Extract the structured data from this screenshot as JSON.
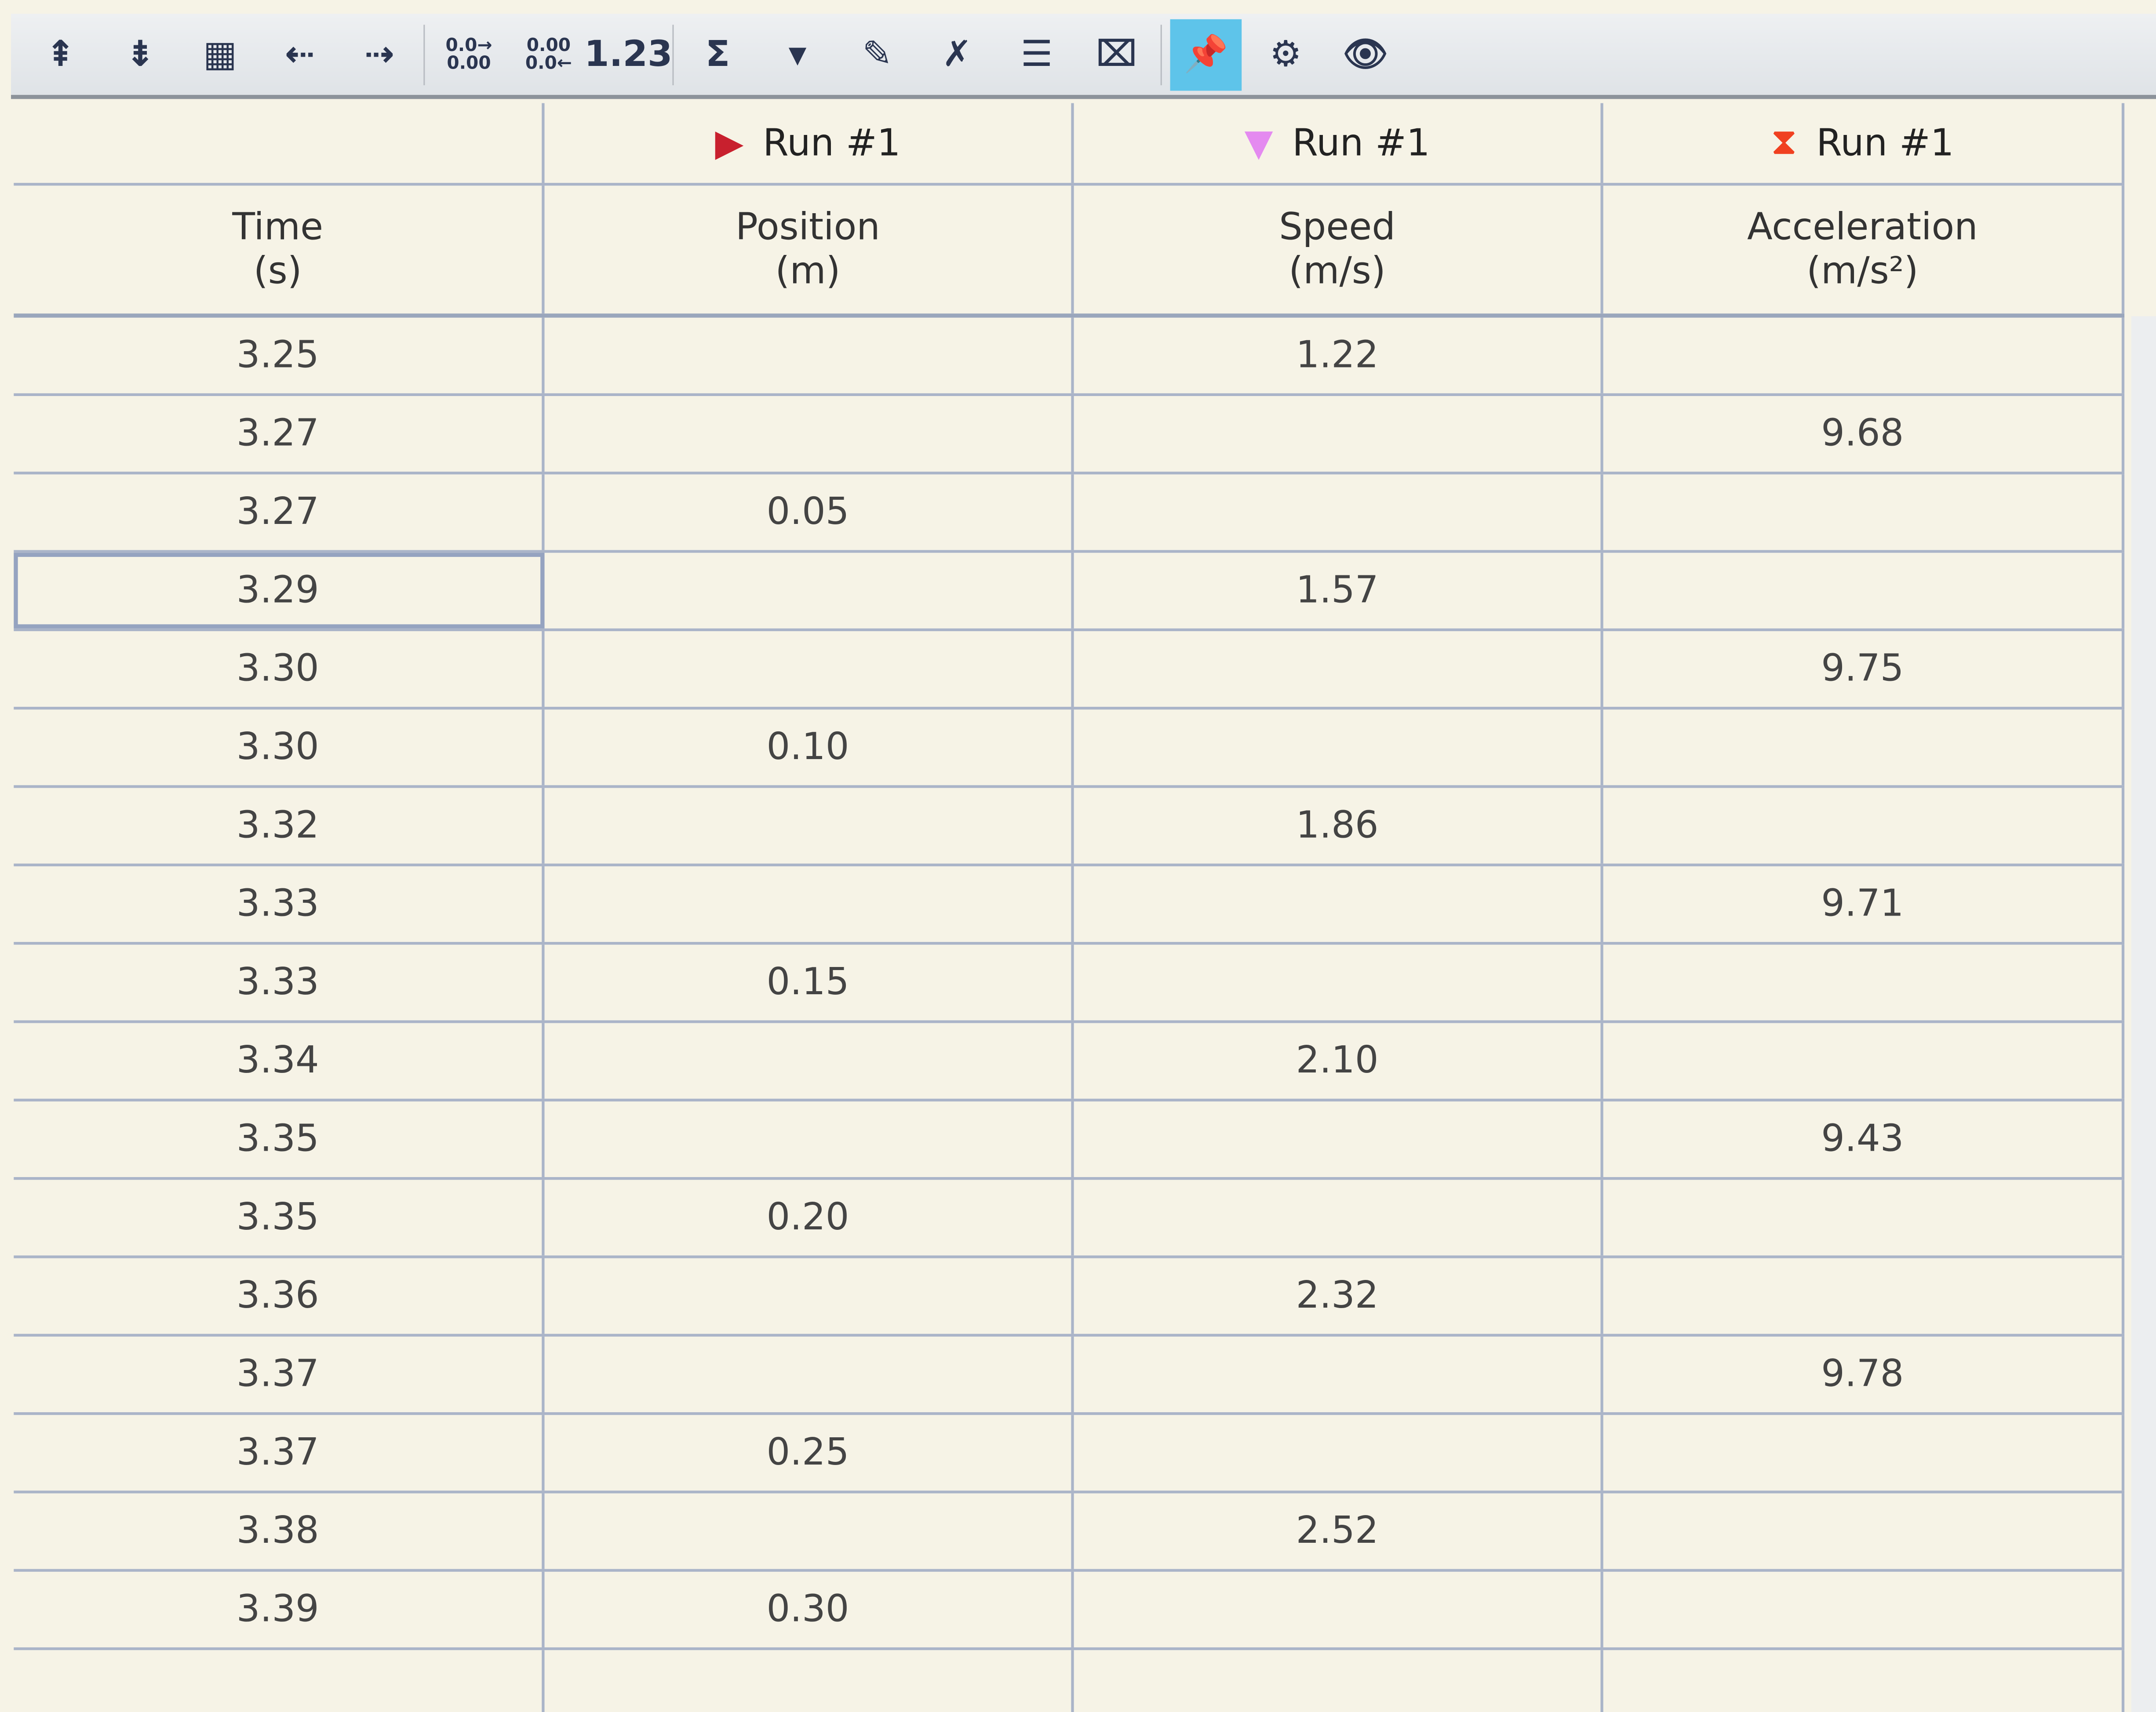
{
  "toolbar": {
    "items": [
      {
        "name": "insert-row-above-icon",
        "glyph": "⇞"
      },
      {
        "name": "insert-row-below-icon",
        "glyph": "⇟"
      },
      {
        "name": "add-column-icon",
        "glyph": "▦"
      },
      {
        "name": "insert-column-left-icon",
        "glyph": "⇠"
      },
      {
        "name": "insert-column-right-icon",
        "glyph": "⇢"
      },
      {
        "name": "increase-decimals-icon",
        "glyph": "0.0→ 0.00"
      },
      {
        "name": "decrease-decimals-icon",
        "glyph": "0.00 0.0←"
      },
      {
        "name": "number-format-icon",
        "glyph": "1.23"
      },
      {
        "name": "sigma-statistics-icon",
        "glyph": "Σ"
      },
      {
        "name": "dropdown-arrow-icon",
        "glyph": "▾"
      },
      {
        "name": "edit-column-icon",
        "glyph": "✎"
      },
      {
        "name": "clear-icon",
        "glyph": "✗"
      },
      {
        "name": "column-properties-icon",
        "glyph": "☰"
      },
      {
        "name": "fit-columns-icon",
        "glyph": "⌧"
      },
      {
        "name": "pin-icon",
        "glyph": "📌",
        "active": true
      },
      {
        "name": "settings-gear-icon",
        "glyph": "⚙"
      },
      {
        "name": "eye-visibility-icon",
        "glyph": "👁"
      }
    ]
  },
  "columns": [
    {
      "run": "",
      "name": "Time",
      "unit": "(s)",
      "marker": "",
      "color": ""
    },
    {
      "run": "Run #1",
      "name": "Position",
      "unit": "(m)",
      "marker": "▶",
      "color": "#c8202e"
    },
    {
      "run": "Run #1",
      "name": "Speed",
      "unit": "(m/s)",
      "marker": "▼",
      "color": "#e48af0"
    },
    {
      "run": "Run #1",
      "name": "Acceleration",
      "unit": "(m/s²)",
      "marker": "⧗",
      "color": "#f04020"
    }
  ],
  "rows": [
    [
      "3.25",
      "",
      "1.22",
      ""
    ],
    [
      "3.27",
      "",
      "",
      "9.68"
    ],
    [
      "3.27",
      "0.05",
      "",
      ""
    ],
    [
      "3.29",
      "",
      "1.57",
      ""
    ],
    [
      "3.30",
      "",
      "",
      "9.75"
    ],
    [
      "3.30",
      "0.10",
      "",
      ""
    ],
    [
      "3.32",
      "",
      "1.86",
      ""
    ],
    [
      "3.33",
      "",
      "",
      "9.71"
    ],
    [
      "3.33",
      "0.15",
      "",
      ""
    ],
    [
      "3.34",
      "",
      "2.10",
      ""
    ],
    [
      "3.35",
      "",
      "",
      "9.43"
    ],
    [
      "3.35",
      "0.20",
      "",
      ""
    ],
    [
      "3.36",
      "",
      "2.32",
      ""
    ],
    [
      "3.37",
      "",
      "",
      "9.78"
    ],
    [
      "3.37",
      "0.25",
      "",
      ""
    ],
    [
      "3.38",
      "",
      "2.52",
      ""
    ],
    [
      "3.39",
      "0.30",
      "",
      ""
    ],
    [
      "",
      "",
      "",
      ""
    ]
  ],
  "selected_row": 3
}
